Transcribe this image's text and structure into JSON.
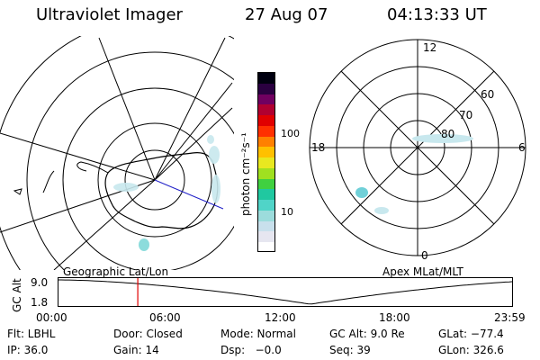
{
  "header": {
    "instrument": "Ultraviolet Imager",
    "date": "27 Aug 07",
    "time": "04:13:33 UT"
  },
  "colorbar": {
    "unit_label": "photon cm⁻²s⁻¹",
    "ticks": [
      "100",
      "10"
    ],
    "colors": [
      "#ffffff",
      "#e6e6f0",
      "#c8e0ec",
      "#9cdcdc",
      "#50d4c8",
      "#20c8a0",
      "#40d040",
      "#a0e020",
      "#e8e820",
      "#ffc000",
      "#ff8000",
      "#ff3000",
      "#e00000",
      "#b00030",
      "#700060",
      "#2a0040",
      "#000010"
    ]
  },
  "left_panel": {
    "caption": "Geographic Lat/Lon"
  },
  "right_panel": {
    "caption": "Apex MLat/MLT",
    "mlt_labels": {
      "top": "12",
      "left": "18",
      "right": "6",
      "bottom": "0"
    },
    "lat_labels": [
      "60",
      "70",
      "80"
    ]
  },
  "timeline": {
    "axis_title": "GC Alt",
    "y_ticks": [
      "9.0",
      "1.8"
    ],
    "x_ticks": [
      "00:00",
      "06:00",
      "12:00",
      "18:00",
      "23:59"
    ],
    "marker_time": "04:13:33",
    "marker_color": "#e00000"
  },
  "footer": {
    "flt": "Flt: LBHL",
    "door": "Door: Closed",
    "mode": "Mode: Normal",
    "gcalt": "GC Alt: 9.0 Re",
    "glat": "GLat: −77.4",
    "ip": "IP: 36.0",
    "gain": "Gain: 14",
    "dsp": "Dsp:   −0.0",
    "seq": "Seq: 39",
    "glon": "GLon: 326.6"
  }
}
